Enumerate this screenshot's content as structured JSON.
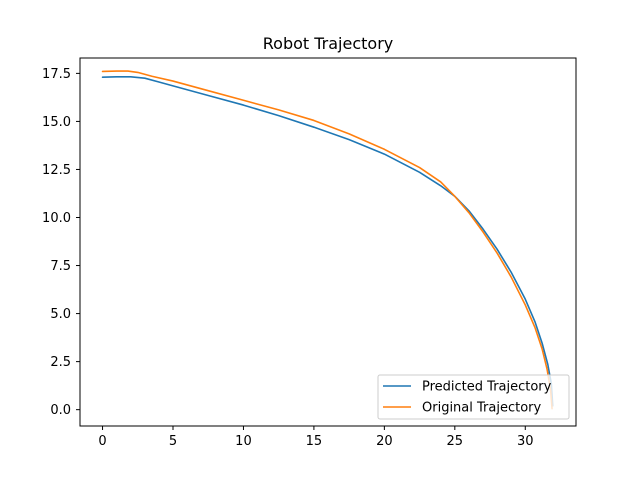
{
  "chart_data": {
    "type": "line",
    "title": "Robot Trajectory",
    "xlabel": "",
    "ylabel": "",
    "xlim": [
      -1.6,
      33.6
    ],
    "ylim": [
      -0.85,
      18.3
    ],
    "xticks": [
      0,
      5,
      10,
      15,
      20,
      25,
      30
    ],
    "xtick_labels": [
      "0",
      "5",
      "10",
      "15",
      "20",
      "25",
      "30"
    ],
    "yticks": [
      0.0,
      2.5,
      5.0,
      7.5,
      10.0,
      12.5,
      15.0,
      17.5
    ],
    "ytick_labels": [
      "0.0",
      "2.5",
      "5.0",
      "7.5",
      "10.0",
      "12.5",
      "15.0",
      "17.5"
    ],
    "grid": false,
    "legend_position": "lower-right",
    "series": [
      {
        "name": "Predicted Trajectory",
        "color": "#1f77b4",
        "x": [
          0,
          1,
          2,
          3,
          4,
          5,
          7.5,
          10,
          12.5,
          15,
          17.5,
          20,
          22.5,
          24,
          25,
          26,
          27,
          28,
          29,
          30,
          30.7,
          31.2,
          31.6,
          31.85,
          31.95
        ],
        "y": [
          17.3,
          17.32,
          17.32,
          17.25,
          17.05,
          16.85,
          16.35,
          15.85,
          15.3,
          14.7,
          14.05,
          13.3,
          12.35,
          11.65,
          11.1,
          10.35,
          9.4,
          8.35,
          7.15,
          5.75,
          4.55,
          3.45,
          2.35,
          1.35,
          0.2
        ]
      },
      {
        "name": "Original Trajectory",
        "color": "#ff7f0e",
        "x": [
          0,
          1,
          1.8,
          2.5,
          3.5,
          5,
          7.5,
          10,
          12.5,
          15,
          17.5,
          20,
          22.5,
          24,
          25,
          26,
          27,
          28,
          29,
          30,
          30.7,
          31.2,
          31.55,
          31.8,
          31.9
        ],
        "y": [
          17.6,
          17.62,
          17.62,
          17.55,
          17.35,
          17.1,
          16.6,
          16.1,
          15.6,
          15.05,
          14.35,
          13.55,
          12.6,
          11.85,
          11.1,
          10.25,
          9.25,
          8.15,
          6.9,
          5.45,
          4.25,
          3.15,
          2.1,
          1.0,
          0.05
        ]
      }
    ]
  }
}
